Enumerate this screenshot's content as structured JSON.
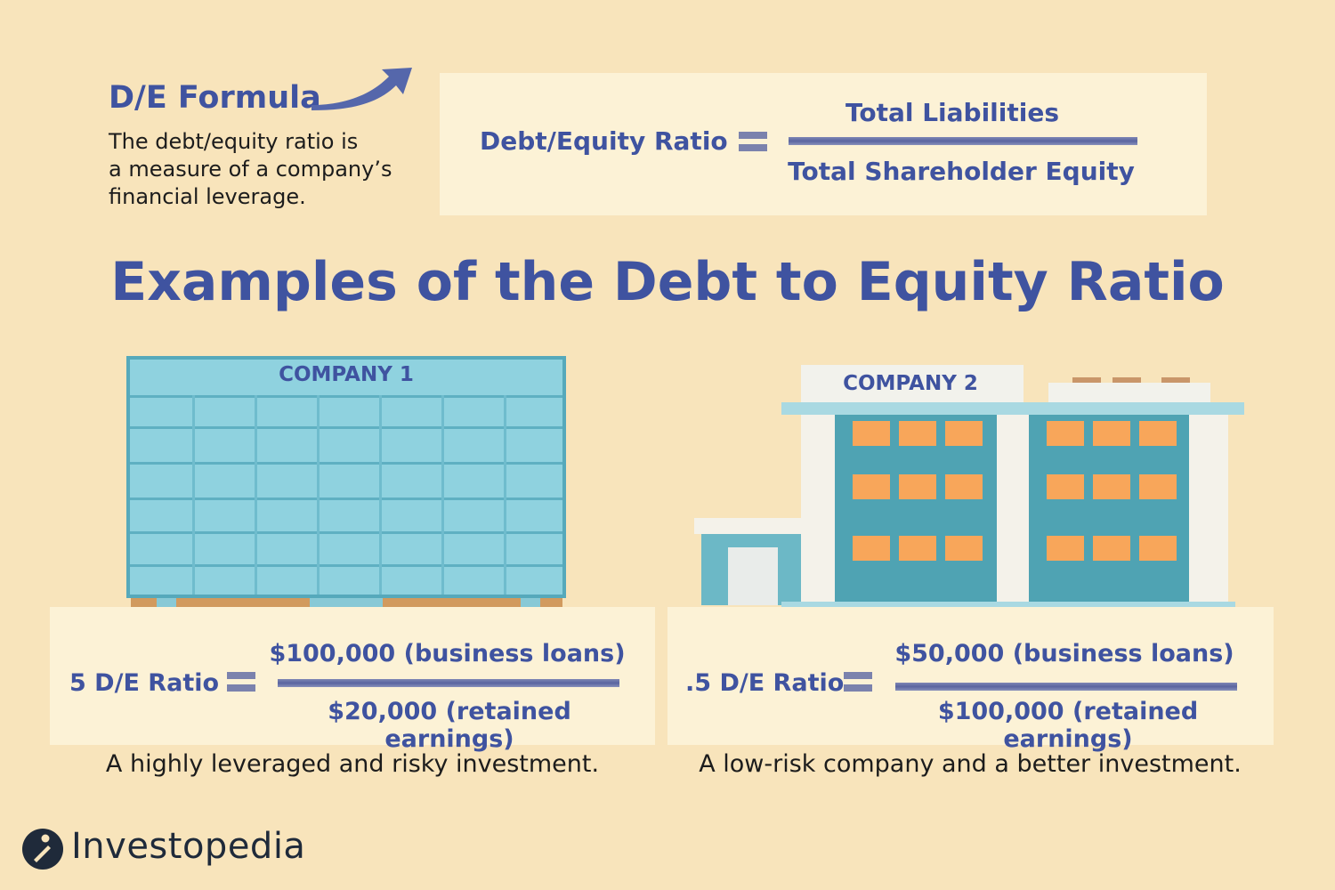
{
  "intro": {
    "heading": "D/E Formula",
    "description_lines": [
      "The debt/equity ratio is",
      "a measure of a company’s",
      "financial leverage."
    ]
  },
  "formula": {
    "label": "Debt/Equity Ratio",
    "numerator": "Total Liabilities",
    "denominator": "Total Shareholder Equity"
  },
  "main_title": "Examples of the Debt to Equity Ratio",
  "company1": {
    "sign": "COMPANY 1",
    "ratio_label": "5 D/E Ratio",
    "numerator": "$100,000 (business loans)",
    "denominator": "$20,000 (retained earnings)",
    "caption": "A highly leveraged and risky investment."
  },
  "company2": {
    "sign": "COMPANY 2",
    "ratio_label": ".5 D/E Ratio",
    "numerator": "$50,000 (business loans)",
    "denominator": "$100,000 (retained earnings)",
    "caption": "A low-risk company and a better investment."
  },
  "brand": {
    "name": "Investopedia",
    "logo_icon": "investopedia-i-logo-icon"
  },
  "colors": {
    "background": "#f8e4bb",
    "panel": "#fcf2d6",
    "text_blue": "#3f53a0",
    "building_teal": "#4fa3b3",
    "window_orange": "#f8a65a"
  }
}
